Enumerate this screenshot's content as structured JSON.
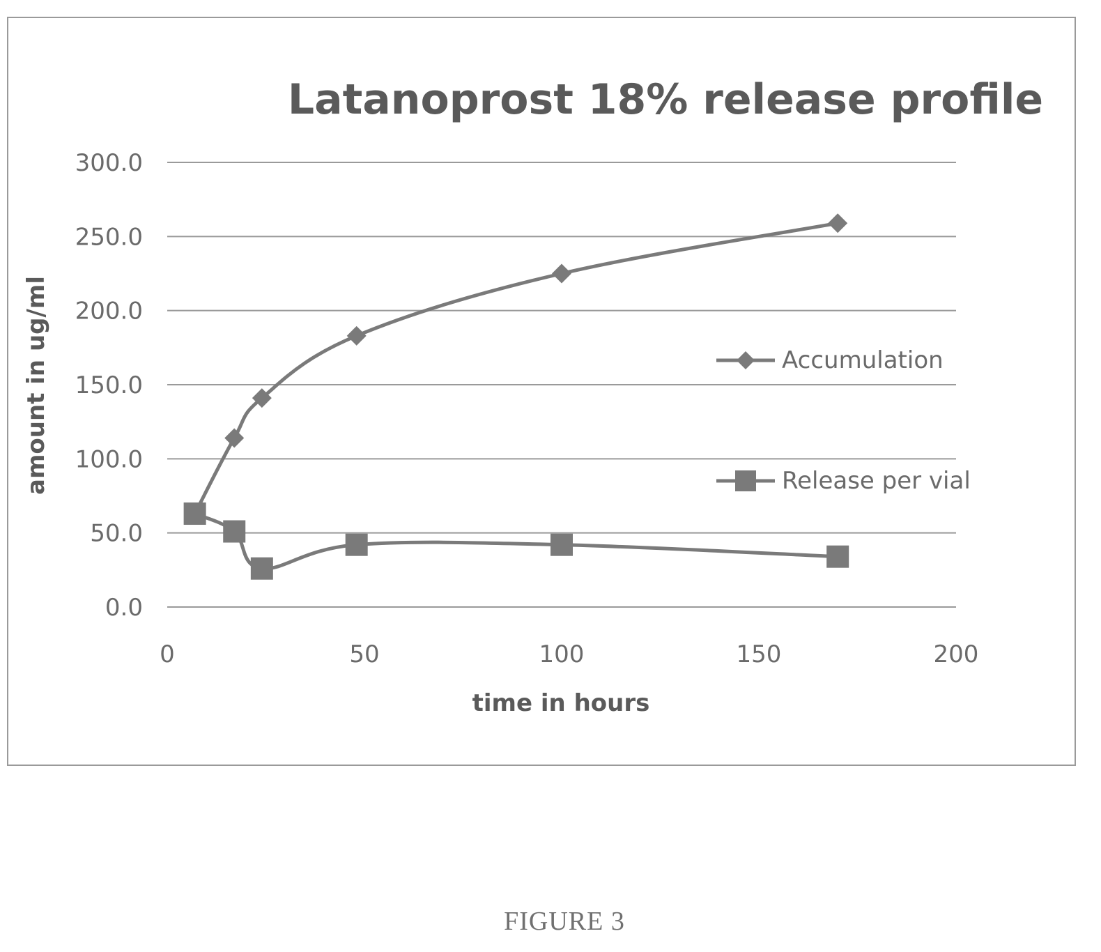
{
  "figure_caption": "FIGURE 3",
  "chart_data": {
    "type": "line",
    "title": "Latanoprost 18% release profile",
    "xlabel": "time in hours",
    "ylabel": "amount in ug/ml",
    "xlim": [
      0,
      200
    ],
    "ylim": [
      0,
      300
    ],
    "x_ticks": [
      "0",
      "50",
      "100",
      "150",
      "200"
    ],
    "y_ticks": [
      "0.0",
      "50.0",
      "100.0",
      "150.0",
      "200.0",
      "250.0",
      "300.0"
    ],
    "grid": "horizontal",
    "legend_position": "right",
    "series": [
      {
        "name": "Accumulation",
        "marker": "diamond",
        "color": "#7a7a7a",
        "x": [
          7,
          17,
          24,
          48,
          100,
          170
        ],
        "y": [
          63,
          114,
          141,
          183,
          225,
          259
        ]
      },
      {
        "name": "Release per vial",
        "marker": "square",
        "color": "#7a7a7a",
        "x": [
          7,
          17,
          24,
          48,
          100,
          170
        ],
        "y": [
          63,
          51,
          26,
          42,
          42,
          34
        ]
      }
    ]
  }
}
